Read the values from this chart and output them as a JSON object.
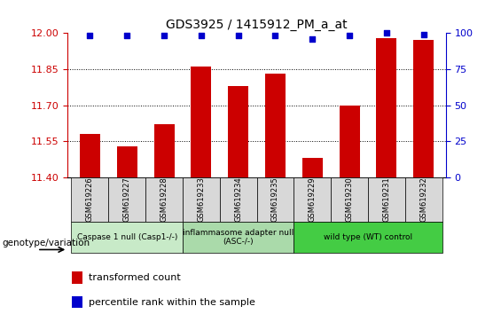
{
  "title": "GDS3925 / 1415912_PM_a_at",
  "samples": [
    "GSM619226",
    "GSM619227",
    "GSM619228",
    "GSM619233",
    "GSM619234",
    "GSM619235",
    "GSM619229",
    "GSM619230",
    "GSM619231",
    "GSM619232"
  ],
  "bar_values": [
    11.58,
    11.53,
    11.62,
    11.86,
    11.78,
    11.83,
    11.48,
    11.7,
    11.98,
    11.97
  ],
  "percentile_values": [
    98,
    98,
    98,
    98,
    98,
    98,
    96,
    98,
    100,
    99
  ],
  "bar_color": "#cc0000",
  "percentile_color": "#0000cc",
  "ylim_left": [
    11.4,
    12.0
  ],
  "ylim_right": [
    0,
    100
  ],
  "yticks_left": [
    11.4,
    11.55,
    11.7,
    11.85,
    12.0
  ],
  "yticks_right": [
    0,
    25,
    50,
    75,
    100
  ],
  "grid_ticks": [
    11.55,
    11.7,
    11.85
  ],
  "groups": [
    {
      "label": "Caspase 1 null (Casp1-/-)",
      "start": 0,
      "end": 3,
      "color": "#c8eac8"
    },
    {
      "label": "inflammasome adapter null\n(ASC-/-)",
      "start": 3,
      "end": 6,
      "color": "#aadaaa"
    },
    {
      "label": "wild type (WT) control",
      "start": 6,
      "end": 10,
      "color": "#44cc44"
    }
  ],
  "sample_box_color": "#d8d8d8",
  "legend_items": [
    {
      "label": "transformed count",
      "color": "#cc0000"
    },
    {
      "label": "percentile rank within the sample",
      "color": "#0000cc"
    }
  ],
  "genotype_label": "genotype/variation",
  "background_color": "#ffffff",
  "bar_width": 0.55
}
